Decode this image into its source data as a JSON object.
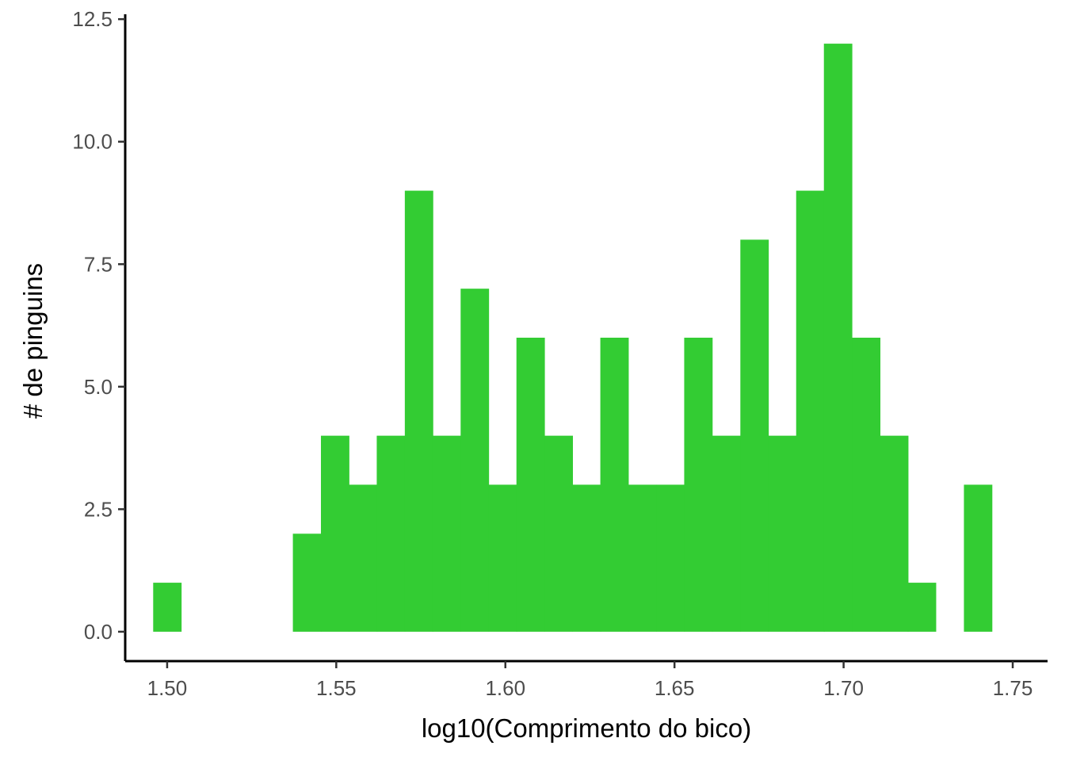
{
  "chart_data": {
    "type": "bar",
    "title": "",
    "xlabel": "log10(Comprimento do bico)",
    "ylabel": "# de pinguins",
    "bar_color": "#33CC33",
    "bin_width": 0.00826,
    "x_bin_centers": [
      1.5,
      1.5083,
      1.5165,
      1.5248,
      1.5331,
      1.5413,
      1.5496,
      1.5579,
      1.5661,
      1.5744,
      1.5826,
      1.5909,
      1.5992,
      1.6074,
      1.6157,
      1.624,
      1.6322,
      1.6405,
      1.6488,
      1.657,
      1.6653,
      1.6736,
      1.6818,
      1.6901,
      1.6983,
      1.7066,
      1.7149,
      1.7231,
      1.7314,
      1.7397,
      1.7479
    ],
    "values": [
      1,
      0,
      0,
      0,
      0,
      2,
      4,
      3,
      4,
      9,
      4,
      7,
      3,
      6,
      4,
      3,
      6,
      3,
      3,
      6,
      4,
      8,
      4,
      9,
      12,
      6,
      4,
      1,
      0,
      3,
      0
    ],
    "xlim": [
      1.4876,
      1.7603
    ],
    "ylim": [
      -0.6,
      12.6
    ],
    "x_ticks": [
      1.5,
      1.55,
      1.6,
      1.65,
      1.7,
      1.75
    ],
    "x_tick_labels": [
      "1.50",
      "1.55",
      "1.60",
      "1.65",
      "1.70",
      "1.75"
    ],
    "y_ticks": [
      0,
      2.5,
      5,
      7.5,
      10,
      12.5
    ],
    "y_tick_labels": [
      "0.0",
      "2.5",
      "5.0",
      "7.5",
      "10.0",
      "12.5"
    ],
    "grid": false,
    "legend": "none"
  }
}
